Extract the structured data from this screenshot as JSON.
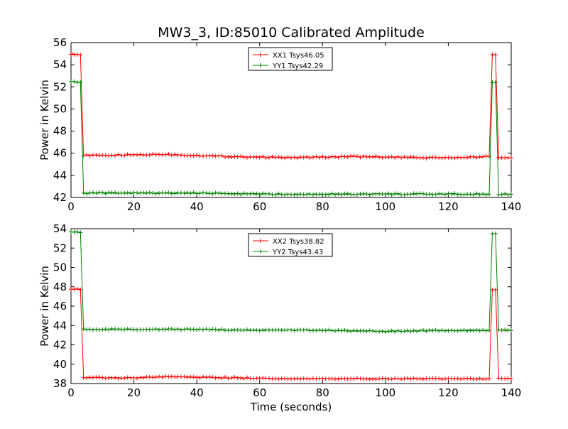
{
  "figure": {
    "title": "MW3_3, ID:85010 Calibrated Amplitude",
    "xlabel": "Time (seconds)"
  },
  "colors": {
    "xx": "#ff0000",
    "yy": "#008000"
  },
  "chart_data": [
    {
      "type": "line",
      "ylabel": "Power in Kelvin",
      "xlim": [
        0,
        140
      ],
      "ylim": [
        42,
        56
      ],
      "xticks": [
        0,
        20,
        40,
        60,
        80,
        100,
        120,
        140
      ],
      "yticks": [
        42,
        44,
        46,
        48,
        50,
        52,
        54,
        56
      ],
      "legend_position": "top-center",
      "series": [
        {
          "name": "XX1 Tsys46.05",
          "color": "#ff0000",
          "points": [
            [
              0,
              55.0
            ],
            [
              3,
              54.9
            ],
            [
              4,
              45.8
            ],
            [
              10,
              45.8
            ],
            [
              30,
              45.9
            ],
            [
              50,
              45.7
            ],
            [
              70,
              45.6
            ],
            [
              90,
              45.7
            ],
            [
              110,
              45.6
            ],
            [
              125,
              45.6
            ],
            [
              133,
              45.7
            ],
            [
              134,
              54.9
            ],
            [
              135,
              54.9
            ],
            [
              136,
              45.6
            ],
            [
              140,
              45.6
            ]
          ]
        },
        {
          "name": "YY1 Tsys42.29",
          "color": "#008000",
          "points": [
            [
              0,
              52.5
            ],
            [
              3,
              52.4
            ],
            [
              4,
              42.4
            ],
            [
              20,
              42.4
            ],
            [
              40,
              42.4
            ],
            [
              60,
              42.3
            ],
            [
              80,
              42.3
            ],
            [
              100,
              42.3
            ],
            [
              120,
              42.3
            ],
            [
              133,
              42.3
            ],
            [
              134,
              52.4
            ],
            [
              135,
              52.4
            ],
            [
              136,
              42.3
            ],
            [
              140,
              42.3
            ]
          ]
        }
      ]
    },
    {
      "type": "line",
      "ylabel": "Power in Kelvin",
      "xlabel": "Time (seconds)",
      "xlim": [
        0,
        140
      ],
      "ylim": [
        38,
        54
      ],
      "xticks": [
        0,
        20,
        40,
        60,
        80,
        100,
        120,
        140
      ],
      "yticks": [
        38,
        40,
        42,
        44,
        46,
        48,
        50,
        52,
        54
      ],
      "legend_position": "top-center",
      "series": [
        {
          "name": "XX2 Tsys38.82",
          "color": "#ff0000",
          "points": [
            [
              0,
              47.8
            ],
            [
              3,
              47.7
            ],
            [
              4,
              38.6
            ],
            [
              20,
              38.6
            ],
            [
              30,
              38.7
            ],
            [
              50,
              38.6
            ],
            [
              70,
              38.5
            ],
            [
              90,
              38.5
            ],
            [
              110,
              38.5
            ],
            [
              133,
              38.5
            ],
            [
              134,
              47.7
            ],
            [
              135,
              47.7
            ],
            [
              136,
              38.5
            ],
            [
              140,
              38.5
            ]
          ]
        },
        {
          "name": "YY2 Tsys43.43",
          "color": "#008000",
          "points": [
            [
              0,
              53.7
            ],
            [
              3,
              53.6
            ],
            [
              4,
              43.6
            ],
            [
              20,
              43.6
            ],
            [
              40,
              43.6
            ],
            [
              60,
              43.5
            ],
            [
              80,
              43.5
            ],
            [
              100,
              43.4
            ],
            [
              120,
              43.5
            ],
            [
              133,
              43.5
            ],
            [
              134,
              53.5
            ],
            [
              135,
              53.5
            ],
            [
              136,
              43.5
            ],
            [
              140,
              43.5
            ]
          ]
        }
      ]
    }
  ]
}
